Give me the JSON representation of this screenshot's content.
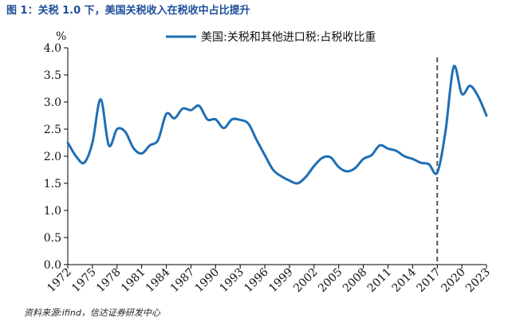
{
  "figure": {
    "title": "图 1：关税 1.0 下，美国关税收入在税收中占比提升",
    "source": "资料来源:ifind，信达证券研发中心"
  },
  "colors": {
    "series": "#1f6fb4",
    "axis": "#000000",
    "marker": "#555555"
  },
  "chart_data": {
    "type": "line",
    "title": "",
    "xlabel": "",
    "ylabel": "%",
    "xlim": [
      1972,
      2023
    ],
    "ylim": [
      0,
      4.0
    ],
    "yticks": [
      "0.0",
      "0.5",
      "1.0",
      "1.5",
      "2.0",
      "2.5",
      "3.0",
      "3.5",
      "4.0"
    ],
    "xticks": [
      "1972",
      "1975",
      "1978",
      "1981",
      "1984",
      "1987",
      "1990",
      "1993",
      "1996",
      "1999",
      "2002",
      "2005",
      "2008",
      "2011",
      "2014",
      "2017",
      "2020",
      "2023"
    ],
    "grid": false,
    "legend": "top-center",
    "vline": {
      "x": 2017,
      "style": "dashed"
    },
    "series": [
      {
        "name": "美国:关税和其他进口税:占税收比重",
        "x": [
          1972,
          1973,
          1974,
          1975,
          1976,
          1977,
          1978,
          1979,
          1980,
          1981,
          1982,
          1983,
          1984,
          1985,
          1986,
          1987,
          1988,
          1989,
          1990,
          1991,
          1992,
          1993,
          1994,
          1995,
          1996,
          1997,
          1998,
          1999,
          2000,
          2001,
          2002,
          2003,
          2004,
          2005,
          2006,
          2007,
          2008,
          2009,
          2010,
          2011,
          2012,
          2013,
          2014,
          2015,
          2016,
          2017,
          2018,
          2019,
          2020,
          2021,
          2022,
          2023
        ],
        "values": [
          2.25,
          2.0,
          1.88,
          2.25,
          3.05,
          2.2,
          2.5,
          2.45,
          2.15,
          2.05,
          2.2,
          2.3,
          2.78,
          2.7,
          2.88,
          2.85,
          2.93,
          2.68,
          2.68,
          2.52,
          2.68,
          2.67,
          2.6,
          2.3,
          2.02,
          1.75,
          1.63,
          1.55,
          1.5,
          1.62,
          1.82,
          1.97,
          1.98,
          1.8,
          1.72,
          1.78,
          1.95,
          2.02,
          2.2,
          2.14,
          2.1,
          2.0,
          1.95,
          1.88,
          1.85,
          1.7,
          2.45,
          3.65,
          3.15,
          3.3,
          3.1,
          2.75
        ]
      }
    ]
  }
}
